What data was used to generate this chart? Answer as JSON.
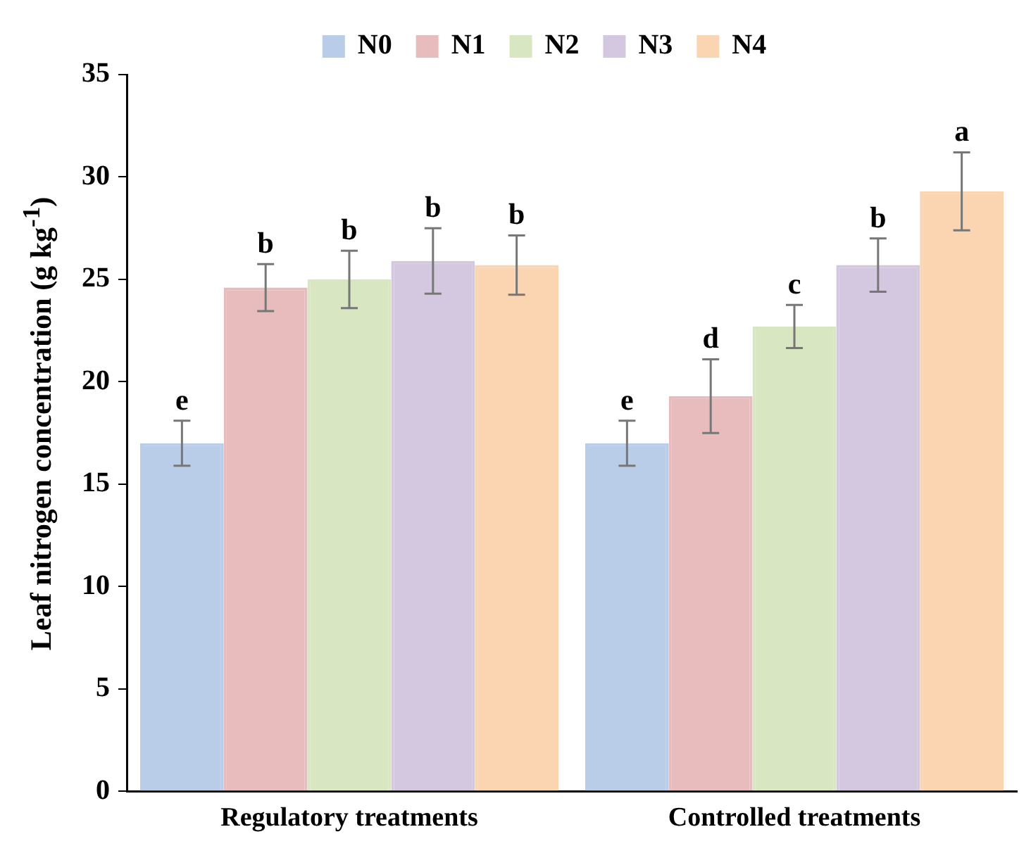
{
  "chart_data": {
    "type": "bar",
    "ylabel": "Leaf nitrogen concentration (g kg$^{-1}$)",
    "categories": [
      "Regulatory treatments",
      "Controlled treatments"
    ],
    "series": [
      {
        "name": "N0",
        "color": "#b9cde8",
        "values": [
          17.0,
          17.0
        ],
        "errors": [
          1.1,
          1.1
        ],
        "value_labels": [
          "e",
          "e"
        ]
      },
      {
        "name": "N1",
        "color": "#e8bcbc",
        "values": [
          24.6,
          19.3
        ],
        "errors": [
          1.15,
          1.8
        ],
        "value_labels": [
          "b",
          "d"
        ]
      },
      {
        "name": "N2",
        "color": "#d9e6c2",
        "values": [
          25.0,
          22.7
        ],
        "errors": [
          1.4,
          1.05
        ],
        "value_labels": [
          "b",
          "c"
        ]
      },
      {
        "name": "N3",
        "color": "#d3c8e0",
        "values": [
          25.9,
          25.7
        ],
        "errors": [
          1.6,
          1.3
        ],
        "value_labels": [
          "b",
          "b"
        ]
      },
      {
        "name": "N4",
        "color": "#fbd4b2",
        "values": [
          25.7,
          29.3
        ],
        "errors": [
          1.45,
          1.9
        ],
        "value_labels": [
          "b",
          "a"
        ]
      }
    ],
    "ylim": [
      0,
      35
    ],
    "yticks": [
      0,
      5,
      10,
      15,
      20,
      25,
      30,
      35
    ],
    "grid": false,
    "legend": "top"
  }
}
